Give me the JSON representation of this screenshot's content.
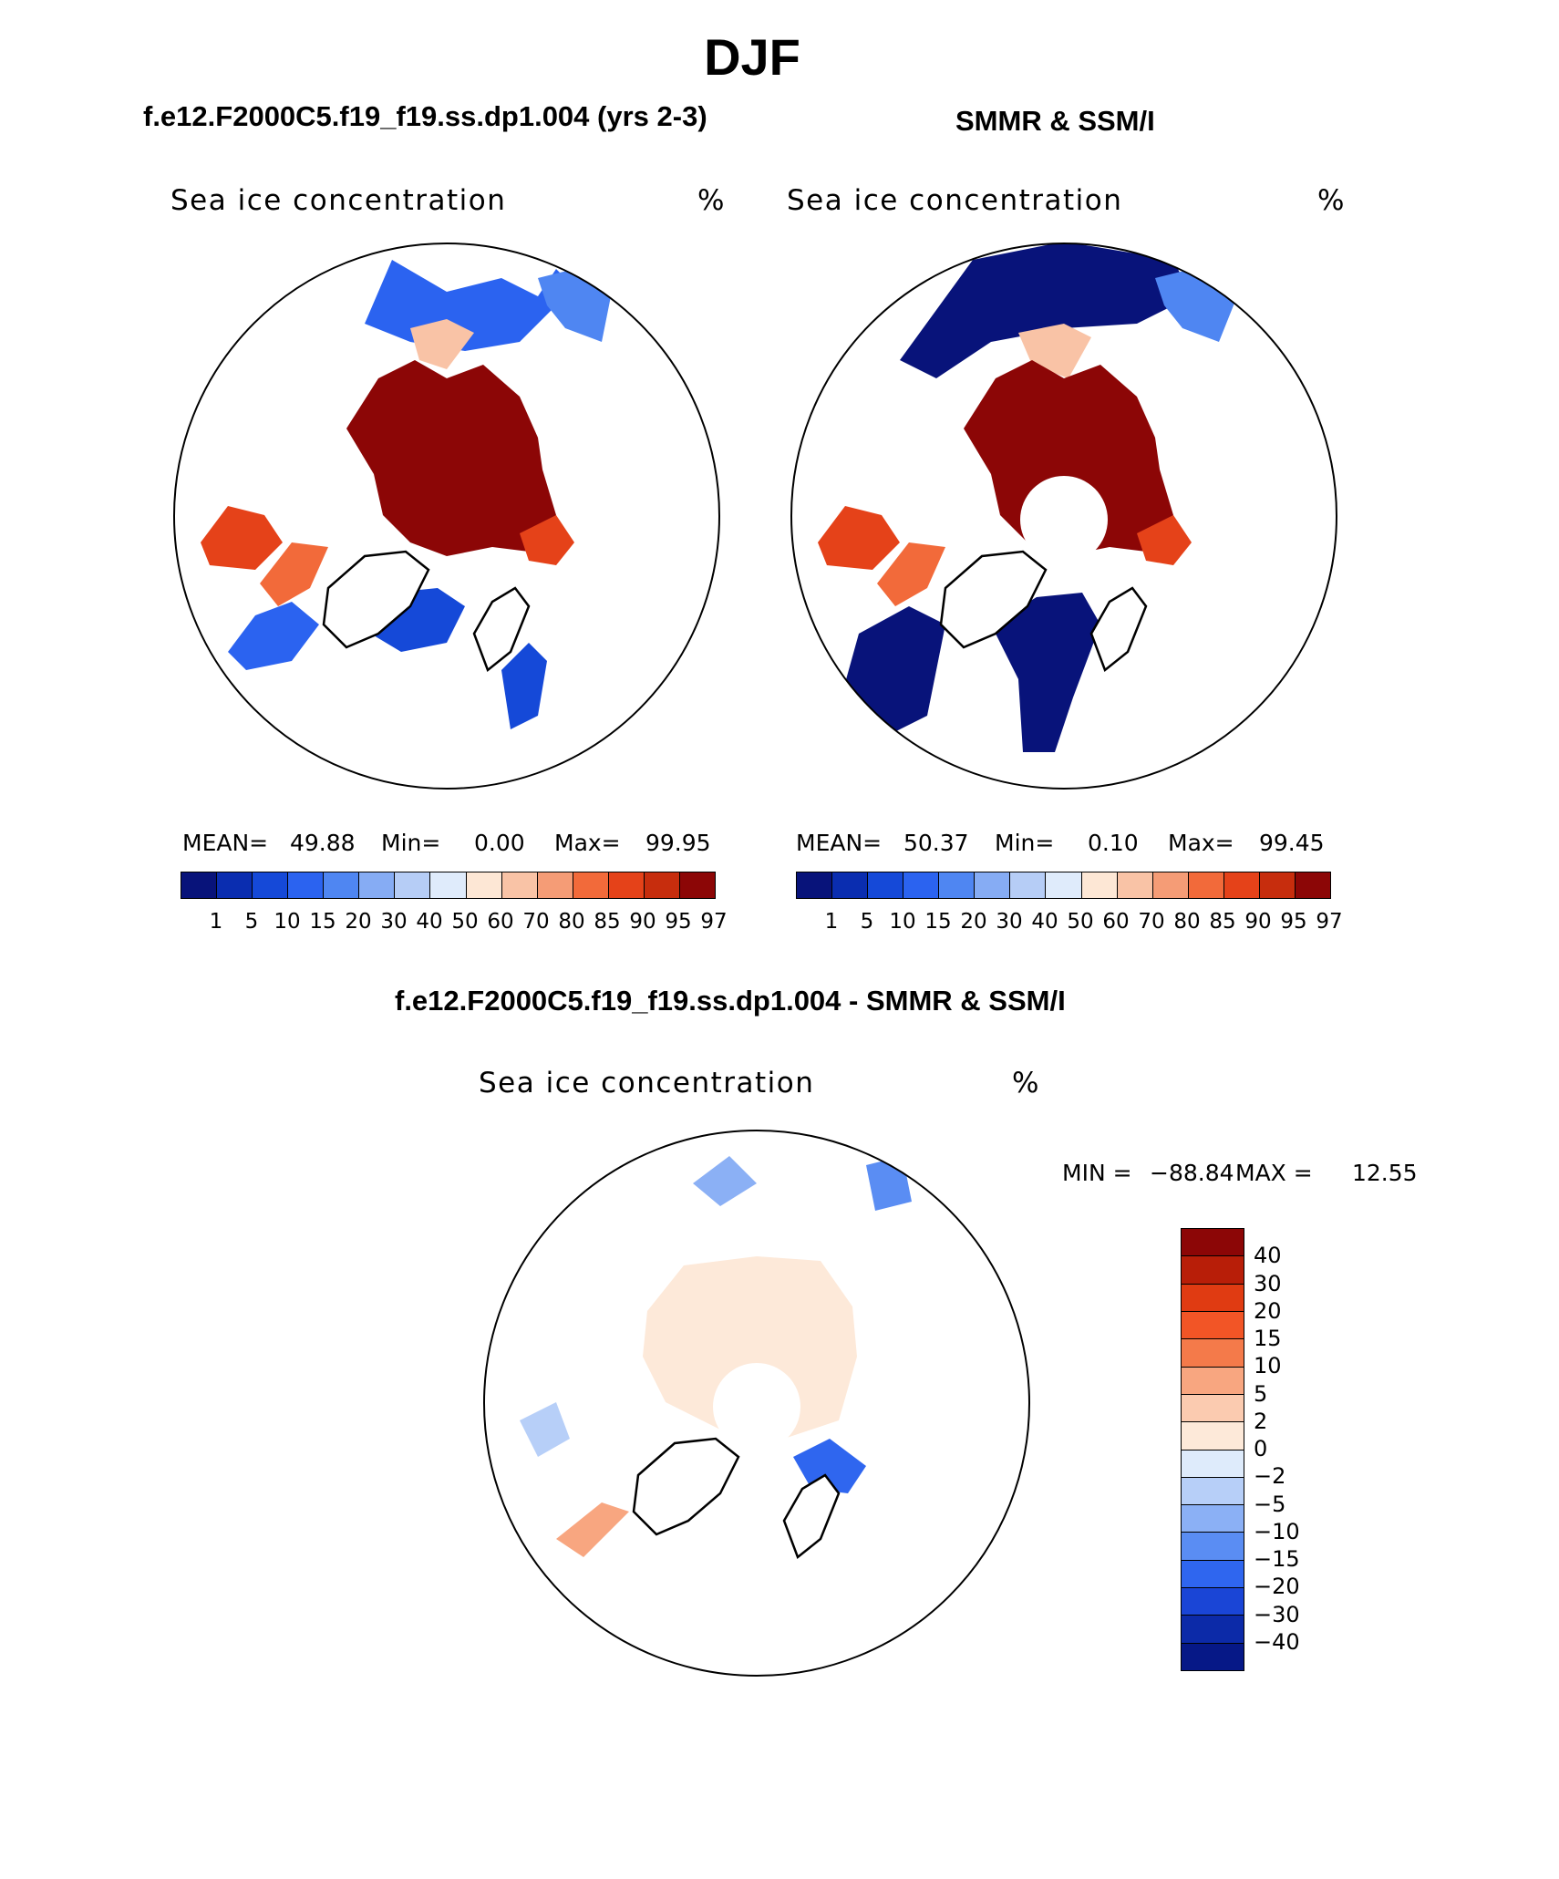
{
  "page": {
    "title": "DJF"
  },
  "chart_data": [
    {
      "type": "polar-contour-map",
      "case_title": "f.e12.F2000C5.f19_f19.ss.dp1.004 (yrs 2-3)",
      "title": "Sea ice concentration",
      "units": "%",
      "stats": {
        "mean_label": "MEAN=",
        "mean": "49.88",
        "min_label": "Min=",
        "min": "0.00",
        "max_label": "Max=",
        "max": "99.95"
      },
      "colorbar": {
        "levels": [
          "1",
          "5",
          "10",
          "15",
          "20",
          "30",
          "40",
          "50",
          "60",
          "70",
          "80",
          "85",
          "90",
          "95",
          "97"
        ],
        "colors": [
          "#08137a",
          "#0a2db0",
          "#1549d8",
          "#2b63f0",
          "#4f86f2",
          "#86acf4",
          "#b6cdf6",
          "#dfebfb",
          "#fde7d5",
          "#f9c3a6",
          "#f59c76",
          "#f26a3a",
          "#e54219",
          "#c72d0d",
          "#8c0606"
        ]
      }
    },
    {
      "type": "polar-contour-map",
      "case_title": "SMMR & SSM/I",
      "title": "Sea ice concentration",
      "units": "%",
      "stats": {
        "mean_label": "MEAN=",
        "mean": "50.37",
        "min_label": "Min=",
        "min": "0.10",
        "max_label": "Max=",
        "max": "99.45"
      },
      "colorbar": {
        "levels": [
          "1",
          "5",
          "10",
          "15",
          "20",
          "30",
          "40",
          "50",
          "60",
          "70",
          "80",
          "85",
          "90",
          "95",
          "97"
        ],
        "colors": [
          "#08137a",
          "#0a2db0",
          "#1549d8",
          "#2b63f0",
          "#4f86f2",
          "#86acf4",
          "#b6cdf6",
          "#dfebfb",
          "#fde7d5",
          "#f9c3a6",
          "#f59c76",
          "#f26a3a",
          "#e54219",
          "#c72d0d",
          "#8c0606"
        ]
      }
    },
    {
      "type": "polar-contour-map",
      "case_title": "f.e12.F2000C5.f19_f19.ss.dp1.004 - SMMR & SSM/I",
      "title": "Sea ice concentration",
      "units": "%",
      "stats": {
        "min_label": "MIN =",
        "min": "−88.84",
        "max_label": "MAX =",
        "max": "12.55"
      },
      "colorbar": {
        "levels": [
          "40",
          "30",
          "20",
          "15",
          "10",
          "5",
          "2",
          "0",
          "−2",
          "−5",
          "−10",
          "−15",
          "−20",
          "−30",
          "−40"
        ],
        "colors": [
          "#8c0606",
          "#b81e08",
          "#e03b12",
          "#f25526",
          "#f47a4a",
          "#f8a680",
          "#fbcbb0",
          "#fde9d9",
          "#deebfb",
          "#b7cff8",
          "#8bb0f5",
          "#5a8df3",
          "#2f66ef",
          "#1a45d6",
          "#0c2aa8",
          "#061887"
        ]
      }
    }
  ]
}
